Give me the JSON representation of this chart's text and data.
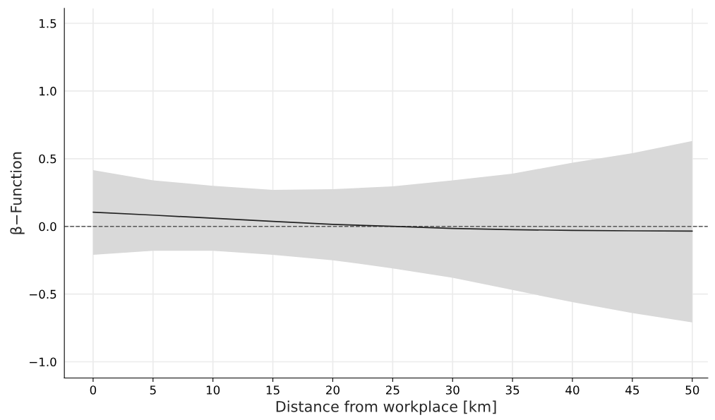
{
  "chart_data": {
    "type": "line",
    "xlabel": "Distance from workplace [km]",
    "ylabel": "β−Function",
    "xlim": [
      -2.4,
      51.3
    ],
    "ylim": [
      -1.12,
      1.61
    ],
    "xticks": [
      0,
      5,
      10,
      15,
      20,
      25,
      30,
      35,
      40,
      45,
      50
    ],
    "yticks": [
      {
        "value": -1.0,
        "label": "−1.0"
      },
      {
        "value": -0.5,
        "label": "−0.5"
      },
      {
        "value": 0.0,
        "label": "0.0"
      },
      {
        "value": 0.5,
        "label": "0.5"
      },
      {
        "value": 1.0,
        "label": "1.0"
      },
      {
        "value": 1.5,
        "label": "1.5"
      }
    ],
    "grid": true,
    "legend": false,
    "ref_lines": [
      {
        "axis": "y",
        "value": 0,
        "color": "#555555",
        "line_style": "dashed"
      }
    ],
    "series": [
      {
        "color": "#222222",
        "x": [
          0,
          5,
          10,
          15,
          20,
          25,
          30,
          35,
          40,
          45,
          50
        ],
        "values": [
          0.105,
          0.083,
          0.06,
          0.037,
          0.015,
          0.0,
          -0.015,
          -0.024,
          -0.03,
          -0.033,
          -0.035
        ],
        "upper": [
          0.415,
          0.34,
          0.3,
          0.27,
          0.275,
          0.295,
          0.34,
          0.39,
          0.47,
          0.54,
          0.63
        ],
        "lower": [
          -0.21,
          -0.18,
          -0.18,
          -0.21,
          -0.25,
          -0.31,
          -0.38,
          -0.47,
          -0.56,
          -0.64,
          -0.71
        ]
      }
    ]
  }
}
